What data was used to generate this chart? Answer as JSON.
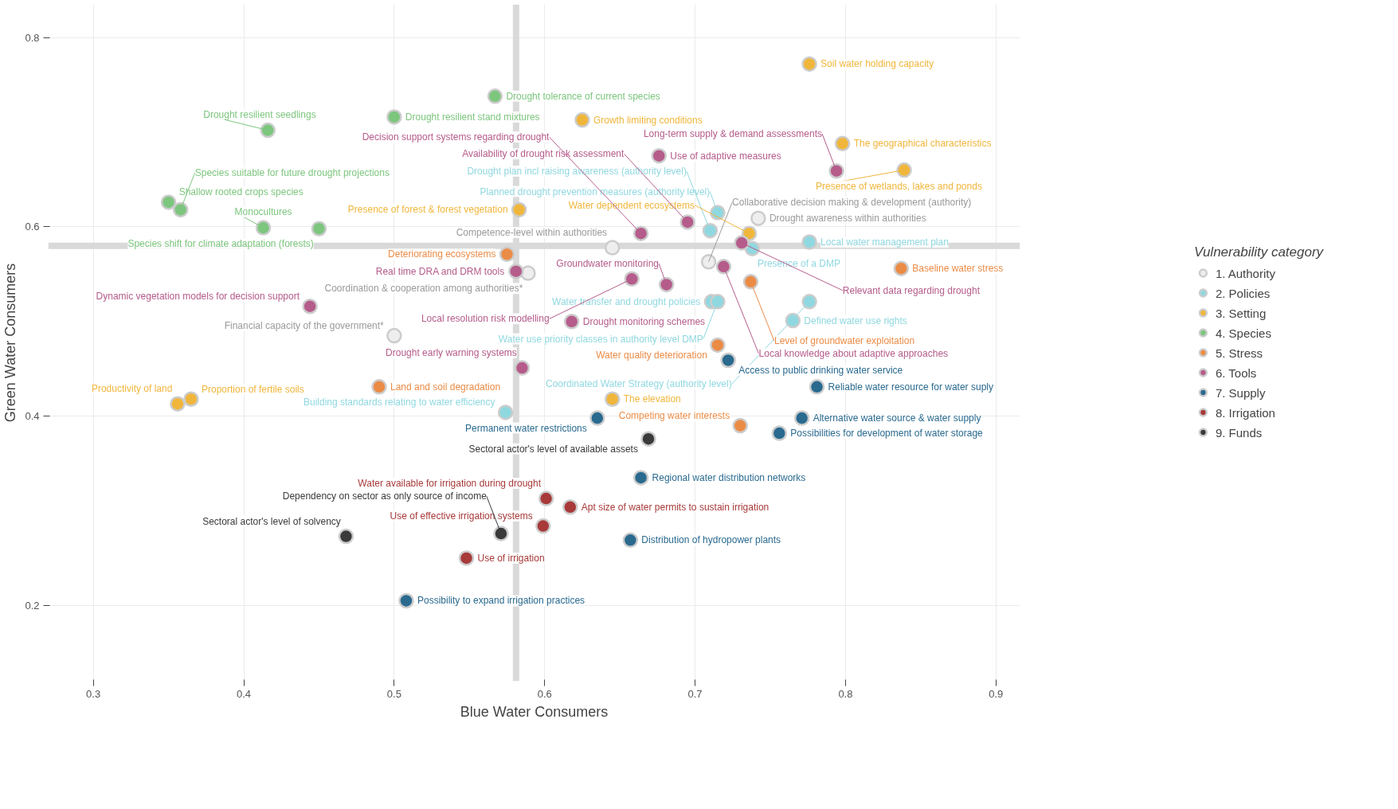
{
  "chart_data": {
    "type": "scatter",
    "xlabel": "Blue Water Consumers",
    "ylabel": "Green Water Consumers",
    "legend_title": "Vulnerability category",
    "legend": "right",
    "grid": true,
    "marker": "circle",
    "xlim": [
      0.27,
      0.916
    ],
    "ylim": [
      0.12,
      0.835
    ],
    "xticks": [
      0.3,
      0.4,
      0.5,
      0.6,
      0.7,
      0.8,
      0.9
    ],
    "yticks": [
      0.2,
      0.4,
      0.6,
      0.8
    ],
    "ref_lines": [
      {
        "axis": "x",
        "value": 0.581,
        "color": "#d9d9d9"
      },
      {
        "axis": "y",
        "value": 0.58,
        "color": "#d9d9d9"
      }
    ],
    "series": [
      {
        "name": "1. Authority",
        "color": "#eeeeee",
        "x": [
          0.645,
          0.589,
          0.709,
          0.742,
          0.5
        ],
        "values": [
          0.578,
          0.551,
          0.563,
          0.609,
          0.485
        ]
      },
      {
        "name": "2. Policies",
        "color": "#90d8e0",
        "x": [
          0.574,
          0.715,
          0.71,
          0.776,
          0.738,
          0.711,
          0.715,
          0.776,
          0.765
        ],
        "values": [
          0.404,
          0.615,
          0.596,
          0.584,
          0.577,
          0.521,
          0.521,
          0.521,
          0.501
        ]
      },
      {
        "name": "3. Setting",
        "color": "#f0b63c",
        "x": [
          0.776,
          0.625,
          0.798,
          0.839,
          0.583,
          0.736,
          0.645,
          0.356,
          0.365
        ],
        "values": [
          0.772,
          0.713,
          0.688,
          0.66,
          0.618,
          0.593,
          0.418,
          0.413,
          0.418
        ]
      },
      {
        "name": "4. Species",
        "color": "#7dc67e",
        "x": [
          0.567,
          0.5,
          0.416,
          0.35,
          0.358,
          0.413,
          0.45
        ],
        "values": [
          0.738,
          0.716,
          0.702,
          0.626,
          0.618,
          0.599,
          0.598
        ]
      },
      {
        "name": "5. Stress",
        "color": "#eb8c46",
        "x": [
          0.575,
          0.837,
          0.737,
          0.715,
          0.49,
          0.73
        ],
        "values": [
          0.571,
          0.556,
          0.542,
          0.475,
          0.431,
          0.39
        ]
      },
      {
        "name": "6. Tools",
        "color": "#b55c8b",
        "x": [
          0.676,
          0.794,
          0.695,
          0.664,
          0.731,
          0.719,
          0.681,
          0.658,
          0.581,
          0.444,
          0.618,
          0.585
        ],
        "values": [
          0.675,
          0.659,
          0.605,
          0.593,
          0.583,
          0.558,
          0.539,
          0.545,
          0.553,
          0.516,
          0.5,
          0.451
        ]
      },
      {
        "name": "7. Supply",
        "color": "#2a6a8f",
        "x": [
          0.722,
          0.781,
          0.771,
          0.635,
          0.756,
          0.664,
          0.657,
          0.508
        ],
        "values": [
          0.459,
          0.431,
          0.398,
          0.398,
          0.382,
          0.335,
          0.269,
          0.205
        ]
      },
      {
        "name": "8. Irrigation",
        "color": "#a83a3a",
        "x": [
          0.601,
          0.617,
          0.599,
          0.548
        ],
        "values": [
          0.313,
          0.304,
          0.284,
          0.25
        ]
      },
      {
        "name": "9. Funds",
        "color": "#3a3a3a",
        "x": [
          0.669,
          0.468,
          0.571
        ],
        "values": [
          0.376,
          0.273,
          0.276
        ]
      }
    ],
    "annotations": [
      {
        "text": "Competence-level within authorities",
        "x": 0.645,
        "y": 0.578
      },
      {
        "text": "Coordination & cooperation among authorities*",
        "x": 0.589,
        "y": 0.551
      },
      {
        "text": "Collaborative decision making & development (authority)",
        "x": 0.709,
        "y": 0.563
      },
      {
        "text": "Drought awareness within authorities",
        "x": 0.742,
        "y": 0.609
      },
      {
        "text": "Financial capacity of the government*",
        "x": 0.5,
        "y": 0.485
      },
      {
        "text": "Building standards relating to water efficiency",
        "x": 0.574,
        "y": 0.404
      },
      {
        "text": "Planned drought prevention measures (authority level)",
        "x": 0.715,
        "y": 0.615
      },
      {
        "text": "Drought plan incl raising awareness (authority level)",
        "x": 0.71,
        "y": 0.596
      },
      {
        "text": "Local water management plan",
        "x": 0.776,
        "y": 0.584
      },
      {
        "text": "Presence of a DMP",
        "x": 0.738,
        "y": 0.577
      },
      {
        "text": "Water transfer and drought policies",
        "x": 0.711,
        "y": 0.521
      },
      {
        "text": "Water use priority classes in authority level DMP",
        "x": 0.715,
        "y": 0.521
      },
      {
        "text": "Coordinated Water Strategy (authority level)",
        "x": 0.776,
        "y": 0.521
      },
      {
        "text": "Defined water use rights",
        "x": 0.765,
        "y": 0.501
      },
      {
        "text": "Soil water holding capacity",
        "x": 0.776,
        "y": 0.772
      },
      {
        "text": "Growth limiting conditions",
        "x": 0.625,
        "y": 0.713
      },
      {
        "text": "The geographical characteristics",
        "x": 0.798,
        "y": 0.688
      },
      {
        "text": "Presence of wetlands, lakes and ponds",
        "x": 0.839,
        "y": 0.66
      },
      {
        "text": "Presence of forest & forest vegetation",
        "x": 0.583,
        "y": 0.618
      },
      {
        "text": "Water dependent ecosystems",
        "x": 0.736,
        "y": 0.593
      },
      {
        "text": "The elevation",
        "x": 0.645,
        "y": 0.418
      },
      {
        "text": "Productivity of land",
        "x": 0.356,
        "y": 0.413
      },
      {
        "text": "Proportion of fertile soils",
        "x": 0.365,
        "y": 0.418
      },
      {
        "text": "Drought tolerance of current species",
        "x": 0.567,
        "y": 0.738
      },
      {
        "text": "Drought resilient stand mixtures",
        "x": 0.5,
        "y": 0.716
      },
      {
        "text": "Drought resilient seedlings",
        "x": 0.416,
        "y": 0.702
      },
      {
        "text": "Shallow rooted crops species",
        "x": 0.35,
        "y": 0.626
      },
      {
        "text": "Species suitable for future drought projections",
        "x": 0.358,
        "y": 0.618
      },
      {
        "text": "Monocultures",
        "x": 0.413,
        "y": 0.599
      },
      {
        "text": "Species shift for climate adaptation (forests)",
        "x": 0.45,
        "y": 0.598
      },
      {
        "text": "Deteriorating ecosystems",
        "x": 0.575,
        "y": 0.571
      },
      {
        "text": "Baseline water stress",
        "x": 0.837,
        "y": 0.556
      },
      {
        "text": "Level of groundwater exploitation",
        "x": 0.737,
        "y": 0.542
      },
      {
        "text": "Water quality deterioration",
        "x": 0.715,
        "y": 0.475
      },
      {
        "text": "Land and soil degradation",
        "x": 0.49,
        "y": 0.431
      },
      {
        "text": "Competing water interests",
        "x": 0.73,
        "y": 0.39
      },
      {
        "text": "Use of adaptive measures",
        "x": 0.676,
        "y": 0.675
      },
      {
        "text": "Long-term supply & demand assessments",
        "x": 0.794,
        "y": 0.659
      },
      {
        "text": "Availability of drought risk assessment",
        "x": 0.695,
        "y": 0.605
      },
      {
        "text": "Decision support systems regarding drought",
        "x": 0.664,
        "y": 0.593
      },
      {
        "text": "Relevant data regarding drought",
        "x": 0.731,
        "y": 0.583
      },
      {
        "text": "Local knowledge about adaptive approaches",
        "x": 0.719,
        "y": 0.558
      },
      {
        "text": "Groundwater monitoring",
        "x": 0.681,
        "y": 0.539
      },
      {
        "text": "Local resolution risk modelling",
        "x": 0.658,
        "y": 0.545
      },
      {
        "text": "Real time DRA and DRM tools",
        "x": 0.581,
        "y": 0.553
      },
      {
        "text": "Dynamic vegetation models for decision support",
        "x": 0.444,
        "y": 0.516
      },
      {
        "text": "Drought monitoring schemes",
        "x": 0.618,
        "y": 0.5
      },
      {
        "text": "Drought early warning systems",
        "x": 0.585,
        "y": 0.451
      },
      {
        "text": "Access to public drinking water service",
        "x": 0.722,
        "y": 0.459
      },
      {
        "text": "Reliable water resource for water suply",
        "x": 0.781,
        "y": 0.431
      },
      {
        "text": "Alternative water source & water supply",
        "x": 0.771,
        "y": 0.398
      },
      {
        "text": "Permanent water restrictions",
        "x": 0.635,
        "y": 0.398
      },
      {
        "text": "Possibilities for development of water storage",
        "x": 0.756,
        "y": 0.382
      },
      {
        "text": "Regional water distribution networks",
        "x": 0.664,
        "y": 0.335
      },
      {
        "text": "Distribution of hydropower plants",
        "x": 0.657,
        "y": 0.269
      },
      {
        "text": "Possibility to expand irrigation practices",
        "x": 0.508,
        "y": 0.205
      },
      {
        "text": "Water available for irrigation during drought",
        "x": 0.601,
        "y": 0.313
      },
      {
        "text": "Apt size of water permits to sustain irrigation",
        "x": 0.617,
        "y": 0.304
      },
      {
        "text": "Use of effective irrigation systems",
        "x": 0.599,
        "y": 0.284
      },
      {
        "text": "Use of irrigation",
        "x": 0.548,
        "y": 0.25
      },
      {
        "text": "Sectoral actor's level of available assets",
        "x": 0.669,
        "y": 0.376
      },
      {
        "text": "Sectoral actor's level of solvency",
        "x": 0.468,
        "y": 0.273
      },
      {
        "text": "Dependency on sector as only source of income",
        "x": 0.571,
        "y": 0.276
      }
    ]
  }
}
